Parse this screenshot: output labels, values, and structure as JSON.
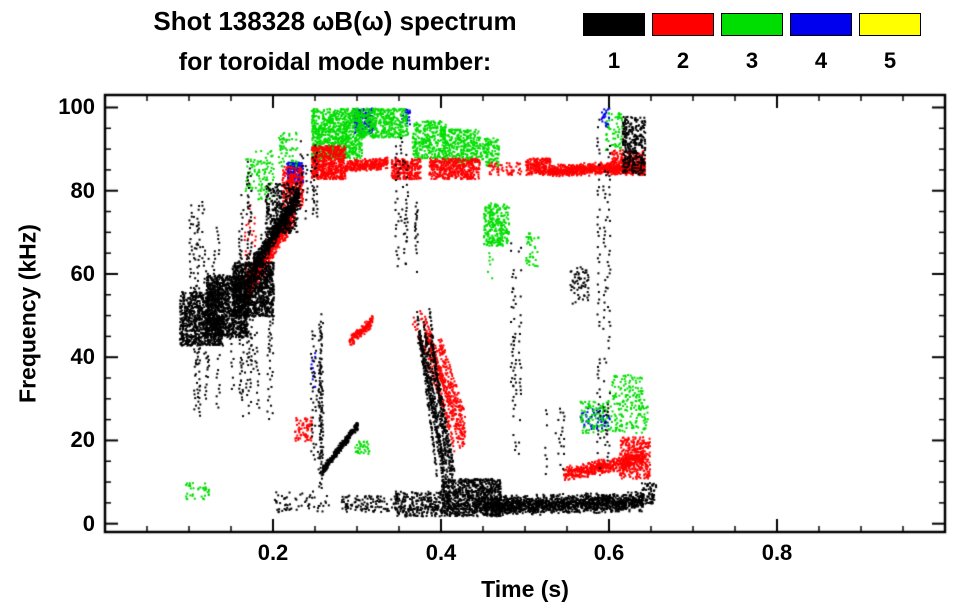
{
  "title": {
    "line1": "Shot 138328 ωB(ω) spectrum",
    "line2": "for toroidal mode number:"
  },
  "legend": {
    "position": "top-right",
    "items": [
      {
        "label": "1",
        "color": "#000000"
      },
      {
        "label": "2",
        "color": "#ff0000"
      },
      {
        "label": "3",
        "color": "#00dd00"
      },
      {
        "label": "4",
        "color": "#0000ee"
      },
      {
        "label": "5",
        "color": "#ffff00"
      }
    ]
  },
  "chart_data": {
    "type": "scatter",
    "title": "Shot 138328 ωB(ω) spectrum for toroidal mode number",
    "xlabel": "Time (s)",
    "ylabel": "Frequency (kHz)",
    "xlim": [
      0.0,
      1.0
    ],
    "ylim": [
      -2,
      103
    ],
    "xticks": [
      0.2,
      0.4,
      0.6,
      0.8
    ],
    "xtick_labels": [
      "0.2",
      "0.4",
      "0.6",
      "0.8"
    ],
    "yticks": [
      0,
      20,
      40,
      60,
      80,
      100
    ],
    "ytick_labels": [
      "0",
      "20",
      "40",
      "60",
      "80",
      "100"
    ],
    "xminor_step": 0.05,
    "yminor_step": 5,
    "grid": false,
    "series": [
      {
        "name": "n=1",
        "color": "#000000",
        "clusters": [
          {
            "type": "cloud",
            "t": [
              0.088,
              0.14
            ],
            "f": [
              43,
              56
            ],
            "n": 900
          },
          {
            "type": "cloud",
            "t": [
              0.12,
              0.17
            ],
            "f": [
              45,
              60
            ],
            "n": 1000
          },
          {
            "type": "cloud",
            "t": [
              0.15,
              0.2
            ],
            "f": [
              50,
              63
            ],
            "n": 1000
          },
          {
            "type": "streaks",
            "t": [
              0.1,
              0.2
            ],
            "f": [
              24,
              80
            ],
            "k": 26,
            "minlen": 8,
            "p": 0.5
          },
          {
            "type": "streaks",
            "t": [
              0.16,
              0.175
            ],
            "f": [
              55,
              93
            ],
            "k": 3,
            "minlen": 20,
            "p": 0.6
          },
          {
            "type": "trace",
            "t": [
              0.175,
              0.23
            ],
            "f": [
              62,
              79
            ],
            "jitter": 3,
            "n": 700
          },
          {
            "type": "cloud",
            "t": [
              0.19,
              0.228
            ],
            "f": [
              70,
              82
            ],
            "n": 350
          },
          {
            "type": "streaks",
            "t": [
              0.23,
              0.255
            ],
            "f": [
              72,
              93
            ],
            "k": 6,
            "minlen": 6,
            "p": 0.55
          },
          {
            "type": "streaks",
            "t": [
              0.243,
              0.258
            ],
            "f": [
              8,
              52
            ],
            "k": 8,
            "minlen": 12,
            "p": 0.6
          },
          {
            "type": "trace",
            "t": [
              0.258,
              0.3
            ],
            "f": [
              13,
              24
            ],
            "jitter": 1.2,
            "n": 350
          },
          {
            "type": "cloud",
            "t": [
              0.2,
              0.27
            ],
            "f": [
              3,
              8
            ],
            "n": 60
          },
          {
            "type": "cloud",
            "t": [
              0.28,
              0.345
            ],
            "f": [
              3,
              7
            ],
            "n": 110
          },
          {
            "type": "streaks",
            "t": [
              0.345,
              0.36
            ],
            "f": [
              60,
              95
            ],
            "k": 4,
            "minlen": 10,
            "p": 0.55
          },
          {
            "type": "streaks",
            "t": [
              0.368,
              0.378
            ],
            "f": [
              58,
              80
            ],
            "k": 2,
            "minlen": 10,
            "p": 0.5
          },
          {
            "type": "chirps",
            "t": [
              0.36,
              0.415
            ],
            "fh": 48,
            "fl": 11,
            "k": 10
          },
          {
            "type": "cloud",
            "t": [
              0.345,
              0.4
            ],
            "f": [
              2,
              8
            ],
            "n": 250
          },
          {
            "type": "cloud",
            "t": [
              0.4,
              0.47
            ],
            "f": [
              2,
              11
            ],
            "n": 900
          },
          {
            "type": "trace",
            "t": [
              0.45,
              0.64
            ],
            "f": [
              4.5,
              5.5
            ],
            "jitter": 2.5,
            "n": 1500
          },
          {
            "type": "streaks",
            "t": [
              0.48,
              0.502
            ],
            "f": [
              10,
              72
            ],
            "k": 3,
            "minlen": 25,
            "p": 0.45
          },
          {
            "type": "streaks",
            "t": [
              0.52,
              0.545
            ],
            "f": [
              12,
              30
            ],
            "k": 4,
            "minlen": 5,
            "p": 0.5
          },
          {
            "type": "cloud",
            "t": [
              0.553,
              0.575
            ],
            "f": [
              53,
              62
            ],
            "n": 60
          },
          {
            "type": "streaks",
            "t": [
              0.585,
              0.61
            ],
            "f": [
              12,
              100
            ],
            "k": 3,
            "minlen": 40,
            "p": 0.45
          },
          {
            "type": "cloud",
            "t": [
              0.615,
              0.642
            ],
            "f": [
              84,
              98
            ],
            "n": 320
          },
          {
            "type": "cloud",
            "t": [
              0.638,
              0.655
            ],
            "f": [
              5,
              10
            ],
            "n": 70
          }
        ]
      },
      {
        "name": "n=2",
        "color": "#ff0000",
        "clusters": [
          {
            "type": "streaks",
            "t": [
              0.16,
              0.18
            ],
            "f": [
              45,
              80
            ],
            "k": 4,
            "minlen": 10,
            "p": 0.5
          },
          {
            "type": "trace",
            "t": [
              0.165,
              0.225
            ],
            "f": [
              56,
              76
            ],
            "jitter": 4,
            "n": 900
          },
          {
            "type": "cloud",
            "t": [
              0.21,
              0.235
            ],
            "f": [
              76,
              86
            ],
            "n": 250
          },
          {
            "type": "cloud",
            "t": [
              0.245,
              0.285
            ],
            "f": [
              83,
              91
            ],
            "n": 600
          },
          {
            "type": "trace",
            "t": [
              0.285,
              0.335
            ],
            "f": [
              86,
              87
            ],
            "jitter": 1.6,
            "n": 300
          },
          {
            "type": "cloud",
            "t": [
              0.34,
              0.375
            ],
            "f": [
              83,
              88
            ],
            "n": 260
          },
          {
            "type": "cloud",
            "t": [
              0.385,
              0.445
            ],
            "f": [
              83,
              88
            ],
            "n": 420
          },
          {
            "type": "cloud",
            "t": [
              0.455,
              0.495
            ],
            "f": [
              84,
              87
            ],
            "n": 60
          },
          {
            "type": "cloud",
            "t": [
              0.5,
              0.53
            ],
            "f": [
              84,
              88
            ],
            "n": 220
          },
          {
            "type": "trace",
            "t": [
              0.53,
              0.642
            ],
            "f": [
              85,
              86
            ],
            "jitter": 1.6,
            "n": 800
          },
          {
            "type": "cloud",
            "t": [
              0.6,
              0.642
            ],
            "f": [
              84,
              90
            ],
            "n": 260
          },
          {
            "type": "chirps",
            "t": [
              0.362,
              0.428
            ],
            "fh": 46,
            "fl": 22,
            "k": 8
          },
          {
            "type": "trace",
            "t": [
              0.29,
              0.318
            ],
            "f": [
              44,
              49
            ],
            "jitter": 1.5,
            "n": 160
          },
          {
            "type": "cloud",
            "t": [
              0.225,
              0.245
            ],
            "f": [
              20,
              26
            ],
            "n": 70
          },
          {
            "type": "trace",
            "t": [
              0.545,
              0.64
            ],
            "f": [
              12,
              16
            ],
            "jitter": 2,
            "n": 520
          },
          {
            "type": "cloud",
            "t": [
              0.612,
              0.648
            ],
            "f": [
              11,
              21
            ],
            "n": 320
          }
        ]
      },
      {
        "name": "n=3",
        "color": "#00dd00",
        "clusters": [
          {
            "type": "cloud",
            "t": [
              0.165,
              0.178
            ],
            "f": [
              80,
              88
            ],
            "n": 30
          },
          {
            "type": "cloud",
            "t": [
              0.178,
              0.2
            ],
            "f": [
              78,
              90
            ],
            "n": 80
          },
          {
            "type": "cloud",
            "t": [
              0.205,
              0.228
            ],
            "f": [
              86,
              95
            ],
            "n": 60
          },
          {
            "type": "cloud",
            "t": [
              0.245,
              0.305
            ],
            "f": [
              88,
              100
            ],
            "n": 900
          },
          {
            "type": "cloud",
            "t": [
              0.3,
              0.36
            ],
            "f": [
              93,
              100
            ],
            "n": 450
          },
          {
            "type": "cloud",
            "t": [
              0.365,
              0.405
            ],
            "f": [
              88,
              97
            ],
            "n": 300
          },
          {
            "type": "cloud",
            "t": [
              0.4,
              0.445
            ],
            "f": [
              87,
              95
            ],
            "n": 330
          },
          {
            "type": "cloud",
            "t": [
              0.445,
              0.468
            ],
            "f": [
              86,
              93
            ],
            "n": 120
          },
          {
            "type": "cloud",
            "t": [
              0.45,
              0.48
            ],
            "f": [
              67,
              77
            ],
            "n": 260
          },
          {
            "type": "streaks",
            "t": [
              0.452,
              0.468
            ],
            "f": [
              58,
              78
            ],
            "k": 2,
            "minlen": 12,
            "p": 0.5
          },
          {
            "type": "cloud",
            "t": [
              0.5,
              0.515
            ],
            "f": [
              62,
              70
            ],
            "n": 40
          },
          {
            "type": "cloud",
            "t": [
              0.565,
              0.645
            ],
            "f": [
              22,
              30
            ],
            "n": 220
          },
          {
            "type": "cloud",
            "t": [
              0.6,
              0.64
            ],
            "f": [
              30,
              36
            ],
            "n": 80
          },
          {
            "type": "cloud",
            "t": [
              0.595,
              0.615
            ],
            "f": [
              90,
              99
            ],
            "n": 60
          },
          {
            "type": "cloud",
            "t": [
              0.095,
              0.125
            ],
            "f": [
              6,
              10
            ],
            "n": 40
          },
          {
            "type": "cloud",
            "t": [
              0.295,
              0.315
            ],
            "f": [
              17,
              20
            ],
            "n": 35
          }
        ]
      },
      {
        "name": "n=4",
        "color": "#0000ee",
        "clusters": [
          {
            "type": "cloud",
            "t": [
              0.215,
              0.235
            ],
            "f": [
              82,
              87
            ],
            "n": 200
          },
          {
            "type": "cloud",
            "t": [
              0.295,
              0.318
            ],
            "f": [
              94,
              100
            ],
            "n": 140
          },
          {
            "type": "streaks",
            "t": [
              0.243,
              0.252
            ],
            "f": [
              33,
              43
            ],
            "k": 2,
            "minlen": 7,
            "p": 0.7
          },
          {
            "type": "cloud",
            "t": [
              0.565,
              0.6
            ],
            "f": [
              23,
              28
            ],
            "n": 60
          },
          {
            "type": "cloud",
            "t": [
              0.352,
              0.362
            ],
            "f": [
              96,
              100
            ],
            "n": 25
          },
          {
            "type": "cloud",
            "t": [
              0.59,
              0.6
            ],
            "f": [
              95,
              100
            ],
            "n": 25
          }
        ]
      },
      {
        "name": "n=5",
        "color": "#ffff00",
        "clusters": []
      }
    ]
  }
}
